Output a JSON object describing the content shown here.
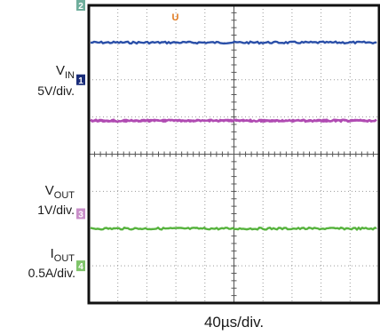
{
  "chart_data": {
    "type": "line",
    "title": "",
    "xlabel": "40µs/div.",
    "grid": true,
    "x_divisions": 10,
    "y_divisions": 8,
    "trigger_marker": "U",
    "channels": [
      {
        "id": "2",
        "color": "#2a4fa8",
        "marker_color": "#6fae9c",
        "label_main": "",
        "label_sub": "",
        "scale": "",
        "marker_level_div": 8.0,
        "trace_level_div": 7.0
      },
      {
        "id": "1",
        "color": "#b04bb2",
        "marker_color": "#1a2d7a",
        "label_main": "V",
        "label_sub": "IN",
        "scale": "5V/div.",
        "marker_level_div": 6.0,
        "trace_level_div": 4.9
      },
      {
        "id": "3",
        "color": "#b04bb2",
        "marker_color": "#c98fc9",
        "label_main": "V",
        "label_sub": "OUT",
        "scale": "1V/div.",
        "marker_level_div": 2.4,
        "trace_level_div": 4.9
      },
      {
        "id": "4",
        "color": "#56b33d",
        "marker_color": "#7fc46a",
        "label_main": "I",
        "label_sub": "OUT",
        "scale": "0.5A/div.",
        "marker_level_div": 1.0,
        "trace_level_div": 2.0
      }
    ]
  }
}
